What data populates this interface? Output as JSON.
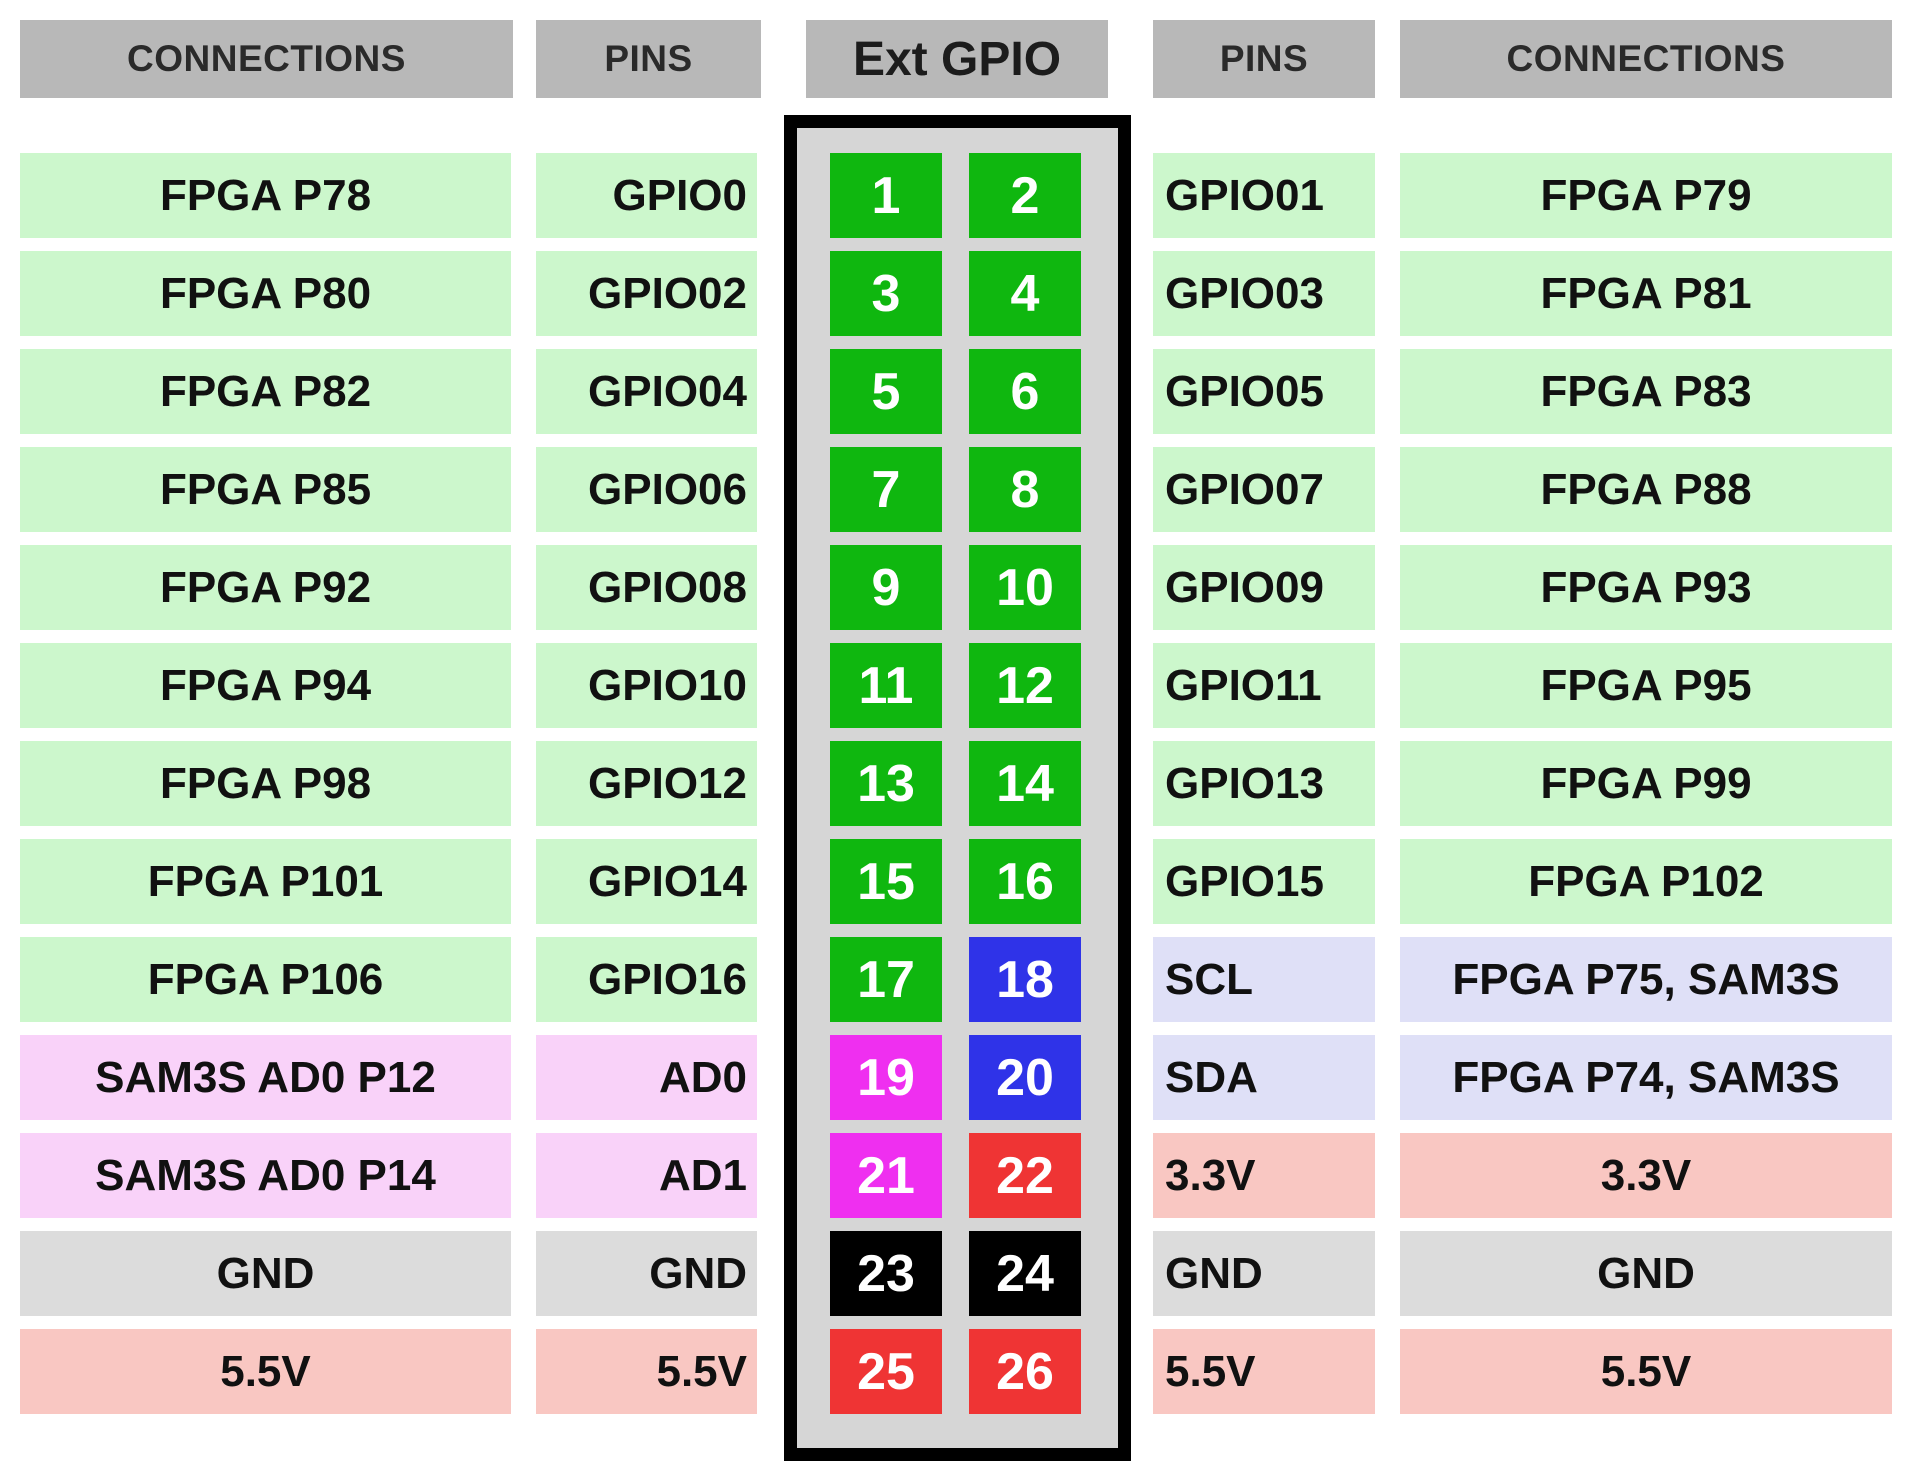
{
  "headers": {
    "left_connections": "CONNECTIONS",
    "left_pins": "PINS",
    "title": "Ext GPIO",
    "right_pins": "PINS",
    "right_connections": "CONNECTIONS"
  },
  "colors": {
    "header_bg": "#b8b8b8",
    "cell_green": "#ccf7cc",
    "cell_pink": "#f9d2f9",
    "cell_gray": "#dcdcdc",
    "cell_red": "#f9c7c2",
    "cell_blue": "#dfe0f7",
    "pin_green": "#0fb70f",
    "pin_blue": "#2f33e8",
    "pin_magenta": "#ef2ff0",
    "pin_red": "#ef3434",
    "pin_black": "#000000"
  },
  "rows": [
    {
      "left_conn": "FPGA P78",
      "left_pin": "GPIO0",
      "odd": "1",
      "even": "2",
      "right_pin": "GPIO01",
      "right_conn": "FPGA P79"
    },
    {
      "left_conn": "FPGA P80",
      "left_pin": "GPIO02",
      "odd": "3",
      "even": "4",
      "right_pin": "GPIO03",
      "right_conn": "FPGA P81"
    },
    {
      "left_conn": "FPGA P82",
      "left_pin": "GPIO04",
      "odd": "5",
      "even": "6",
      "right_pin": "GPIO05",
      "right_conn": "FPGA P83"
    },
    {
      "left_conn": "FPGA P85",
      "left_pin": "GPIO06",
      "odd": "7",
      "even": "8",
      "right_pin": "GPIO07",
      "right_conn": "FPGA P88"
    },
    {
      "left_conn": "FPGA P92",
      "left_pin": "GPIO08",
      "odd": "9",
      "even": "10",
      "right_pin": "GPIO09",
      "right_conn": "FPGA P93"
    },
    {
      "left_conn": "FPGA P94",
      "left_pin": "GPIO10",
      "odd": "11",
      "even": "12",
      "right_pin": "GPIO11",
      "right_conn": "FPGA P95"
    },
    {
      "left_conn": "FPGA P98",
      "left_pin": "GPIO12",
      "odd": "13",
      "even": "14",
      "right_pin": "GPIO13",
      "right_conn": "FPGA P99"
    },
    {
      "left_conn": "FPGA P101",
      "left_pin": "GPIO14",
      "odd": "15",
      "even": "16",
      "right_pin": "GPIO15",
      "right_conn": "FPGA P102"
    },
    {
      "left_conn": "FPGA P106",
      "left_pin": "GPIO16",
      "odd": "17",
      "even": "18",
      "right_pin": "SCL",
      "right_conn": "FPGA P75, SAM3S"
    },
    {
      "left_conn": "SAM3S AD0 P12",
      "left_pin": "AD0",
      "odd": "19",
      "even": "20",
      "right_pin": "SDA",
      "right_conn": "FPGA P74, SAM3S"
    },
    {
      "left_conn": "SAM3S AD0 P14",
      "left_pin": "AD1",
      "odd": "21",
      "even": "22",
      "right_pin": "3.3V",
      "right_conn": "3.3V"
    },
    {
      "left_conn": "GND",
      "left_pin": "GND",
      "odd": "23",
      "even": "24",
      "right_pin": "GND",
      "right_conn": "GND"
    },
    {
      "left_conn": "5.5V",
      "left_pin": "5.5V",
      "odd": "25",
      "even": "26",
      "right_pin": "5.5V",
      "right_conn": "5.5V"
    }
  ]
}
